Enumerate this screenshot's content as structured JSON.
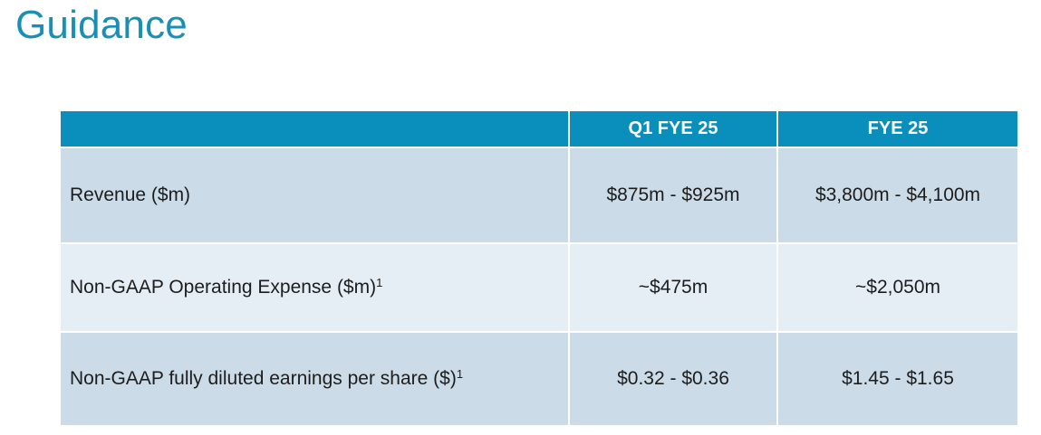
{
  "title": "Guidance",
  "table": {
    "headers": [
      "",
      "Q1 FYE 25",
      "FYE 25"
    ],
    "rows": [
      {
        "label": "Revenue ($m)",
        "footnote": "",
        "q1": "$875m - $925m",
        "fy": "$3,800m - $4,100m"
      },
      {
        "label": "Non-GAAP Operating Expense ($m)",
        "footnote": "1",
        "q1": "~$475m",
        "fy": "~$2,050m"
      },
      {
        "label": "Non-GAAP fully diluted earnings per share ($)",
        "footnote": "1",
        "q1": "$0.32 - $0.36",
        "fy": "$1.45 - $1.65"
      }
    ]
  },
  "colors": {
    "title": "#1a8fb5",
    "header_bg": "#0a8fbd",
    "row_dark": "#cbdce8",
    "row_light": "#e6eef5"
  }
}
